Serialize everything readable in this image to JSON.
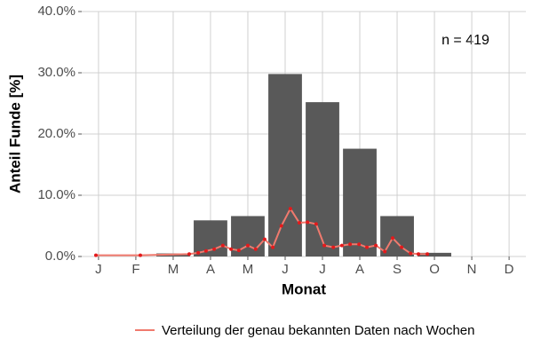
{
  "chart_data": {
    "type": "bar",
    "y_label": "Anteil Funde [%]",
    "x_label": "Monat",
    "annotation": "n = 419",
    "categories": [
      "J",
      "F",
      "M",
      "A",
      "M",
      "J",
      "J",
      "A",
      "S",
      "O",
      "N",
      "D"
    ],
    "values": [
      0,
      0,
      0.5,
      5.9,
      6.6,
      29.8,
      25.2,
      17.6,
      6.6,
      0.6,
      0,
      0
    ],
    "color": "#595959",
    "xlim": [
      0.55,
      12.45
    ],
    "ylim": [
      0,
      40
    ],
    "yticks": [
      {
        "value": 0,
        "label": "0.0%"
      },
      {
        "value": 10,
        "label": "10.0%"
      },
      {
        "value": 20,
        "label": "20.0%"
      },
      {
        "value": 30,
        "label": "30.0%"
      },
      {
        "value": 40,
        "label": "40.0%"
      }
    ],
    "grid": true,
    "line": {
      "type": "line",
      "name": "Verteilung der genau bekannten Daten nach Wochen",
      "color": "#f07a6e",
      "point_color": "#e31a1c",
      "x": [
        0.93,
        2.12,
        3.43,
        3.67,
        3.88,
        4.1,
        4.33,
        4.55,
        4.76,
        5.0,
        5.21,
        5.45,
        5.67,
        5.9,
        6.14,
        6.38,
        6.6,
        6.83,
        7.05,
        7.29,
        7.52,
        7.74,
        7.98,
        8.19,
        8.43,
        8.67,
        8.88,
        9.12,
        9.36,
        9.57,
        9.81
      ],
      "values": [
        0.2,
        0.2,
        0.4,
        0.6,
        0.9,
        1.2,
        1.8,
        1.2,
        1.0,
        1.8,
        1.2,
        2.8,
        1.5,
        5.0,
        7.8,
        5.5,
        5.6,
        5.3,
        1.8,
        1.5,
        1.8,
        2.0,
        2.0,
        1.5,
        1.8,
        0.8,
        3.0,
        1.5,
        0.5,
        0.4,
        0.4
      ]
    }
  }
}
